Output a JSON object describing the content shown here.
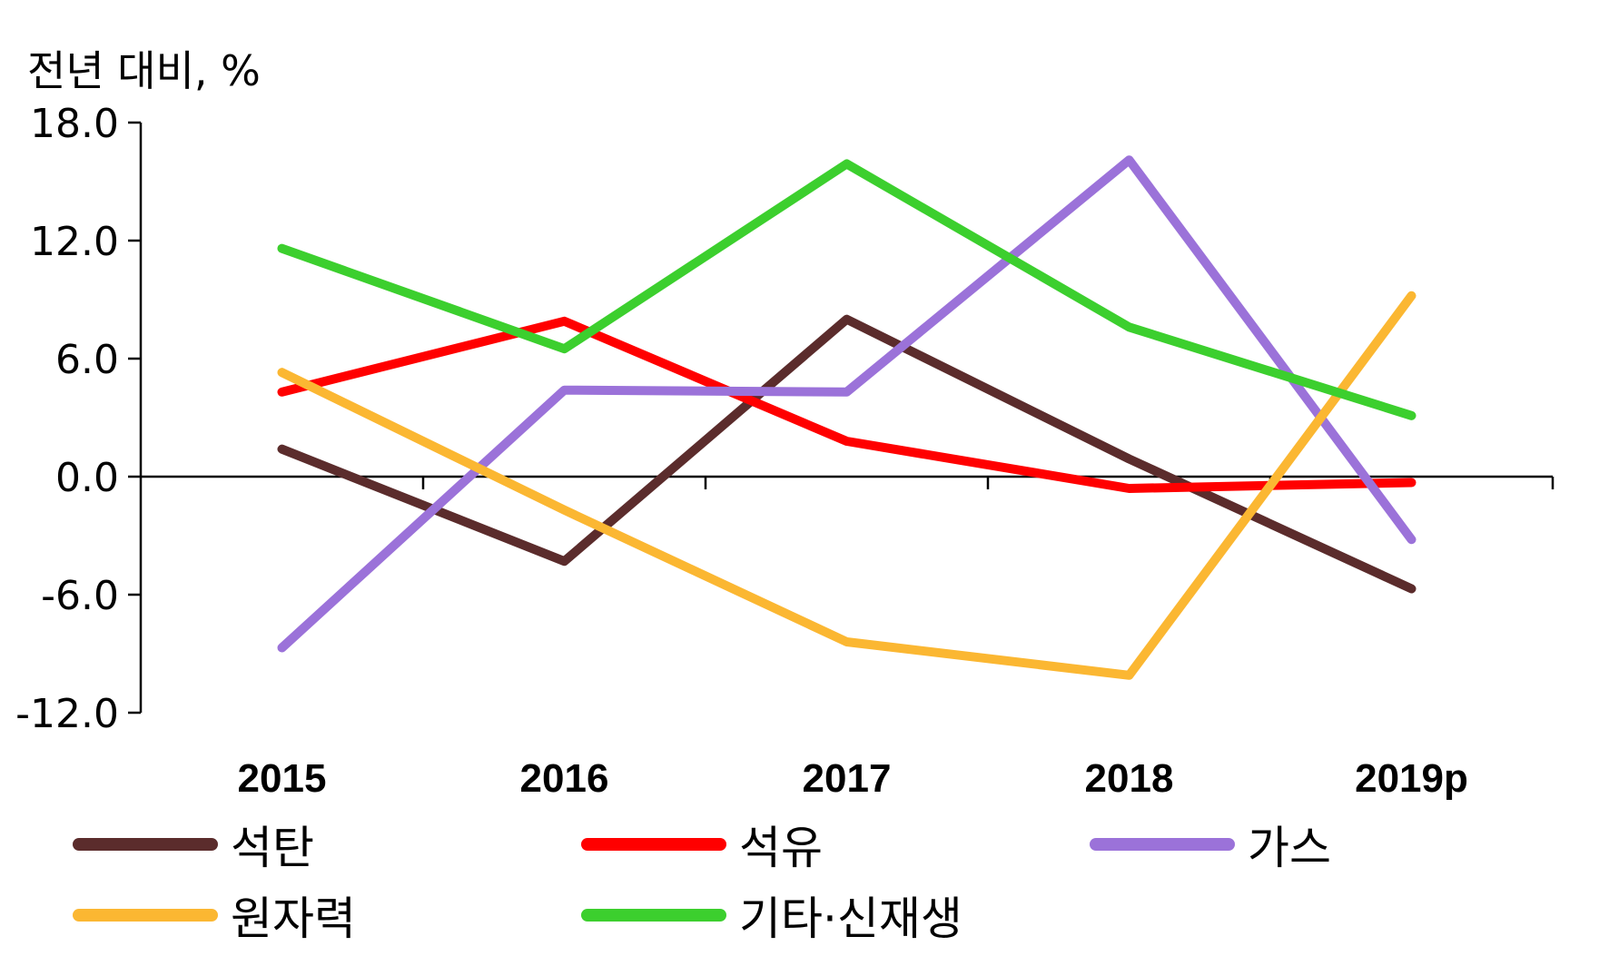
{
  "chart_data": {
    "type": "line",
    "ylabel": "전년 대비, %",
    "categories": [
      "2015",
      "2016",
      "2017",
      "2018",
      "2019p"
    ],
    "ylim": [
      -12,
      18
    ],
    "yticks": [
      "18.0",
      "12.0",
      "6.0",
      "0.0",
      "-6.0",
      "-12.0"
    ],
    "ytick_values": [
      18,
      12,
      6,
      0,
      -6,
      -12
    ],
    "legend_position": "bottom",
    "series": [
      {
        "name": "석탄",
        "color": "#5b2c2c",
        "values": [
          1.4,
          -4.3,
          8.0,
          0.9,
          -5.7
        ]
      },
      {
        "name": "석유",
        "color": "#ff0000",
        "values": [
          4.3,
          7.9,
          1.8,
          -0.6,
          -0.3
        ]
      },
      {
        "name": "가스",
        "color": "#9b72d9",
        "values": [
          -8.7,
          4.4,
          4.3,
          16.1,
          -3.2
        ]
      },
      {
        "name": "원자력",
        "color": "#fbb732",
        "values": [
          5.3,
          -1.7,
          -8.4,
          -10.1,
          9.2
        ]
      },
      {
        "name": "기타·신재생",
        "color": "#3ccf2e",
        "values": [
          11.6,
          6.5,
          15.9,
          7.6,
          3.1
        ]
      }
    ]
  }
}
